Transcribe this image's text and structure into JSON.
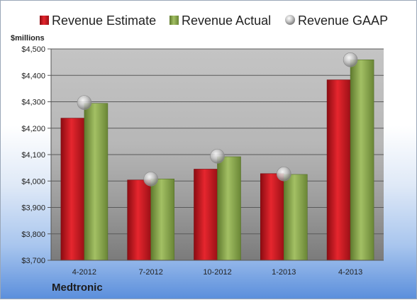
{
  "company_label": "Medtronic",
  "chart_data": {
    "type": "bar",
    "ylabel": "$millions",
    "ylim": [
      3700,
      4500
    ],
    "yticks": [
      3700,
      3800,
      3900,
      4000,
      4100,
      4200,
      4300,
      4400,
      4500
    ],
    "ytick_labels": [
      "$3,700",
      "$3,800",
      "$3,900",
      "$4,000",
      "$4,100",
      "$4,200",
      "$4,300",
      "$4,400",
      "$4,500"
    ],
    "categories": [
      "4-2012",
      "7-2012",
      "10-2012",
      "1-2013",
      "4-2013"
    ],
    "grid": true,
    "legend_position": "top",
    "series": [
      {
        "name": "Revenue Estimate",
        "kind": "bar",
        "color": "#c8141e",
        "values": [
          4238,
          4004,
          4045,
          4028,
          4383
        ]
      },
      {
        "name": "Revenue Actual",
        "kind": "bar",
        "color": "#8cac4f",
        "values": [
          4294,
          4008,
          4092,
          4025,
          4459
        ]
      },
      {
        "name": "Revenue GAAP",
        "kind": "point",
        "color": "#b5b5b5",
        "values": [
          4297,
          4008,
          4094,
          4027,
          4459
        ]
      }
    ]
  }
}
